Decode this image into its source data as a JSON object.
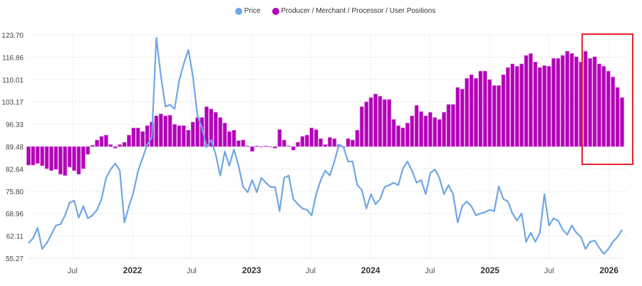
{
  "colors": {
    "price": "#6fa6e6",
    "positions": "#b300b8",
    "positions_edge": "#d77fdc",
    "highlight": "#e8232a"
  },
  "legend": [
    {
      "label": "Price",
      "color": "#6fa6e6"
    },
    {
      "label": "Producer / Merchant / Processor / User Positions",
      "color": "#b300b8"
    }
  ],
  "chart_data": {
    "type": "bar+line",
    "title": "",
    "xlabel": "",
    "ylabel": "",
    "ylim": [
      55.27,
      123.7
    ],
    "y_ticks": [
      "123.70",
      "116.86",
      "110.01",
      "103.17",
      "96.33",
      "89.48",
      "82.64",
      "75.80",
      "68.96",
      "62.11",
      "55.27"
    ],
    "bar_baseline": 89.48,
    "x_ticks": [
      {
        "date": "2021-07-01",
        "label": "Jul",
        "year": false
      },
      {
        "date": "2022-01-01",
        "label": "2022",
        "year": true
      },
      {
        "date": "2022-07-01",
        "label": "Jul",
        "year": false
      },
      {
        "date": "2023-01-01",
        "label": "2023",
        "year": true
      },
      {
        "date": "2023-07-01",
        "label": "Jul",
        "year": false
      },
      {
        "date": "2024-01-01",
        "label": "2024",
        "year": true
      },
      {
        "date": "2024-07-01",
        "label": "Jul",
        "year": false
      },
      {
        "date": "2025-01-01",
        "label": "2025",
        "year": true
      },
      {
        "date": "2025-07-01",
        "label": "Jul",
        "year": false
      },
      {
        "date": "2026-01-01",
        "label": "2026",
        "year": true
      }
    ],
    "grid": true,
    "legend_position": "top",
    "highlight_range": [
      "2025-10-14",
      "2026-02-24"
    ],
    "x": [
      "2021-02-16",
      "2021-03-02",
      "2021-03-16",
      "2021-03-30",
      "2021-04-13",
      "2021-04-27",
      "2021-05-11",
      "2021-05-25",
      "2021-06-08",
      "2021-06-22",
      "2021-07-06",
      "2021-07-20",
      "2021-08-03",
      "2021-08-17",
      "2021-08-31",
      "2021-09-14",
      "2021-09-28",
      "2021-10-12",
      "2021-10-26",
      "2021-11-09",
      "2021-11-23",
      "2021-12-07",
      "2021-12-21",
      "2022-01-04",
      "2022-01-18",
      "2022-02-01",
      "2022-02-15",
      "2022-03-01",
      "2022-03-15",
      "2022-03-29",
      "2022-04-12",
      "2022-04-26",
      "2022-05-10",
      "2022-05-24",
      "2022-06-07",
      "2022-06-21",
      "2022-07-05",
      "2022-07-19",
      "2022-08-02",
      "2022-08-16",
      "2022-08-30",
      "2022-09-13",
      "2022-09-27",
      "2022-10-11",
      "2022-10-25",
      "2022-11-08",
      "2022-11-22",
      "2022-12-06",
      "2022-12-20",
      "2023-01-03",
      "2023-01-17",
      "2023-01-31",
      "2023-02-14",
      "2023-02-28",
      "2023-03-14",
      "2023-03-28",
      "2023-04-11",
      "2023-04-25",
      "2023-05-09",
      "2023-05-23",
      "2023-06-06",
      "2023-06-20",
      "2023-07-04",
      "2023-07-18",
      "2023-08-01",
      "2023-08-15",
      "2023-08-29",
      "2023-09-12",
      "2023-09-26",
      "2023-10-10",
      "2023-10-24",
      "2023-11-07",
      "2023-11-21",
      "2023-12-05",
      "2023-12-19",
      "2024-01-02",
      "2024-01-16",
      "2024-01-30",
      "2024-02-13",
      "2024-02-27",
      "2024-03-12",
      "2024-03-26",
      "2024-04-09",
      "2024-04-23",
      "2024-05-07",
      "2024-05-21",
      "2024-06-04",
      "2024-06-18",
      "2024-07-02",
      "2024-07-16",
      "2024-07-30",
      "2024-08-13",
      "2024-08-27",
      "2024-09-10",
      "2024-09-24",
      "2024-10-08",
      "2024-10-22",
      "2024-11-05",
      "2024-11-19",
      "2024-12-03",
      "2024-12-17",
      "2024-12-31",
      "2025-01-14",
      "2025-01-28",
      "2025-02-11",
      "2025-02-25",
      "2025-03-11",
      "2025-03-25",
      "2025-04-08",
      "2025-04-22",
      "2025-05-06",
      "2025-05-20",
      "2025-06-03",
      "2025-06-17",
      "2025-07-01",
      "2025-07-15",
      "2025-07-29",
      "2025-08-12",
      "2025-08-26",
      "2025-09-09",
      "2025-09-23",
      "2025-10-07",
      "2025-10-21",
      "2025-11-04",
      "2025-11-18",
      "2025-12-02",
      "2025-12-16",
      "2025-12-30",
      "2026-01-13",
      "2026-01-27",
      "2026-02-10"
    ],
    "series": [
      {
        "name": "Price",
        "type": "line",
        "values": [
          59.9,
          61.4,
          64.6,
          58.1,
          59.9,
          62.5,
          65.3,
          65.7,
          68.4,
          72.3,
          72.9,
          67.7,
          71.2,
          67.5,
          68.4,
          70.1,
          73.4,
          79.9,
          82.5,
          84.3,
          82.1,
          66.2,
          71.2,
          75.5,
          82.1,
          86.0,
          90.1,
          92.3,
          122.8,
          111.1,
          101.7,
          102.3,
          101.0,
          109.8,
          114.8,
          119.1,
          111.1,
          98.9,
          95.2,
          89.3,
          91.5,
          87.1,
          80.6,
          88.0,
          83.6,
          88.6,
          83.6,
          77.1,
          75.5,
          79.2,
          75.5,
          79.9,
          78.4,
          77.1,
          77.1,
          69.7,
          79.9,
          80.6,
          73.4,
          71.8,
          70.5,
          70.1,
          68.4,
          74.9,
          79.2,
          82.1,
          80.6,
          84.9,
          90.1,
          89.3,
          84.9,
          84.9,
          77.7,
          76.2,
          70.5,
          74.9,
          71.8,
          73.4,
          77.1,
          77.7,
          78.4,
          77.7,
          82.7,
          84.9,
          82.1,
          78.4,
          79.2,
          74.9,
          81.4,
          82.5,
          79.9,
          74.9,
          77.7,
          74.9,
          66.2,
          71.2,
          72.7,
          71.2,
          68.4,
          69.0,
          69.4,
          70.1,
          69.7,
          77.3,
          73.4,
          72.7,
          69.0,
          66.8,
          69.0,
          60.3,
          63.1,
          60.3,
          63.1,
          74.9,
          65.3,
          67.5,
          66.8,
          64.0,
          62.5,
          65.3,
          63.1,
          61.8,
          58.1,
          60.3,
          60.7,
          58.5,
          56.6,
          58.1,
          60.3,
          61.8,
          64.0
        ]
      },
      {
        "name": "Producer / Merchant / Processor / User Positions",
        "type": "bar",
        "values": [
          83.8,
          83.8,
          84.3,
          83.6,
          82.7,
          82.1,
          82.5,
          81.0,
          80.6,
          83.2,
          82.1,
          81.0,
          82.7,
          87.1,
          89.9,
          91.5,
          92.6,
          93.0,
          90.1,
          89.0,
          90.1,
          90.8,
          93.0,
          95.2,
          95.2,
          94.1,
          95.9,
          97.0,
          98.9,
          99.5,
          98.9,
          99.1,
          96.3,
          95.9,
          95.9,
          94.5,
          97.0,
          98.4,
          98.4,
          101.7,
          101.0,
          100.0,
          98.4,
          96.7,
          94.1,
          94.5,
          91.3,
          91.5,
          89.7,
          88.0,
          89.7,
          89.3,
          89.7,
          89.3,
          89.0,
          94.7,
          91.5,
          89.7,
          88.4,
          90.8,
          92.6,
          93.0,
          95.2,
          94.7,
          91.9,
          90.1,
          92.3,
          91.9,
          90.1,
          89.3,
          91.9,
          91.5,
          94.5,
          101.7,
          103.2,
          104.5,
          105.6,
          104.9,
          103.9,
          103.9,
          97.8,
          95.9,
          95.2,
          96.7,
          98.9,
          102.1,
          100.2,
          98.9,
          100.0,
          98.4,
          97.8,
          100.0,
          102.4,
          102.4,
          107.6,
          107.1,
          110.4,
          111.5,
          110.4,
          112.6,
          112.6,
          110.0,
          108.2,
          108.2,
          111.5,
          113.7,
          114.8,
          114.1,
          114.8,
          117.4,
          118.0,
          115.4,
          113.7,
          114.3,
          114.1,
          116.5,
          116.5,
          117.4,
          118.7,
          118.0,
          117.0,
          115.4,
          118.7,
          116.5,
          117.0,
          114.8,
          114.1,
          112.6,
          110.8,
          107.6,
          104.5
        ]
      }
    ]
  }
}
